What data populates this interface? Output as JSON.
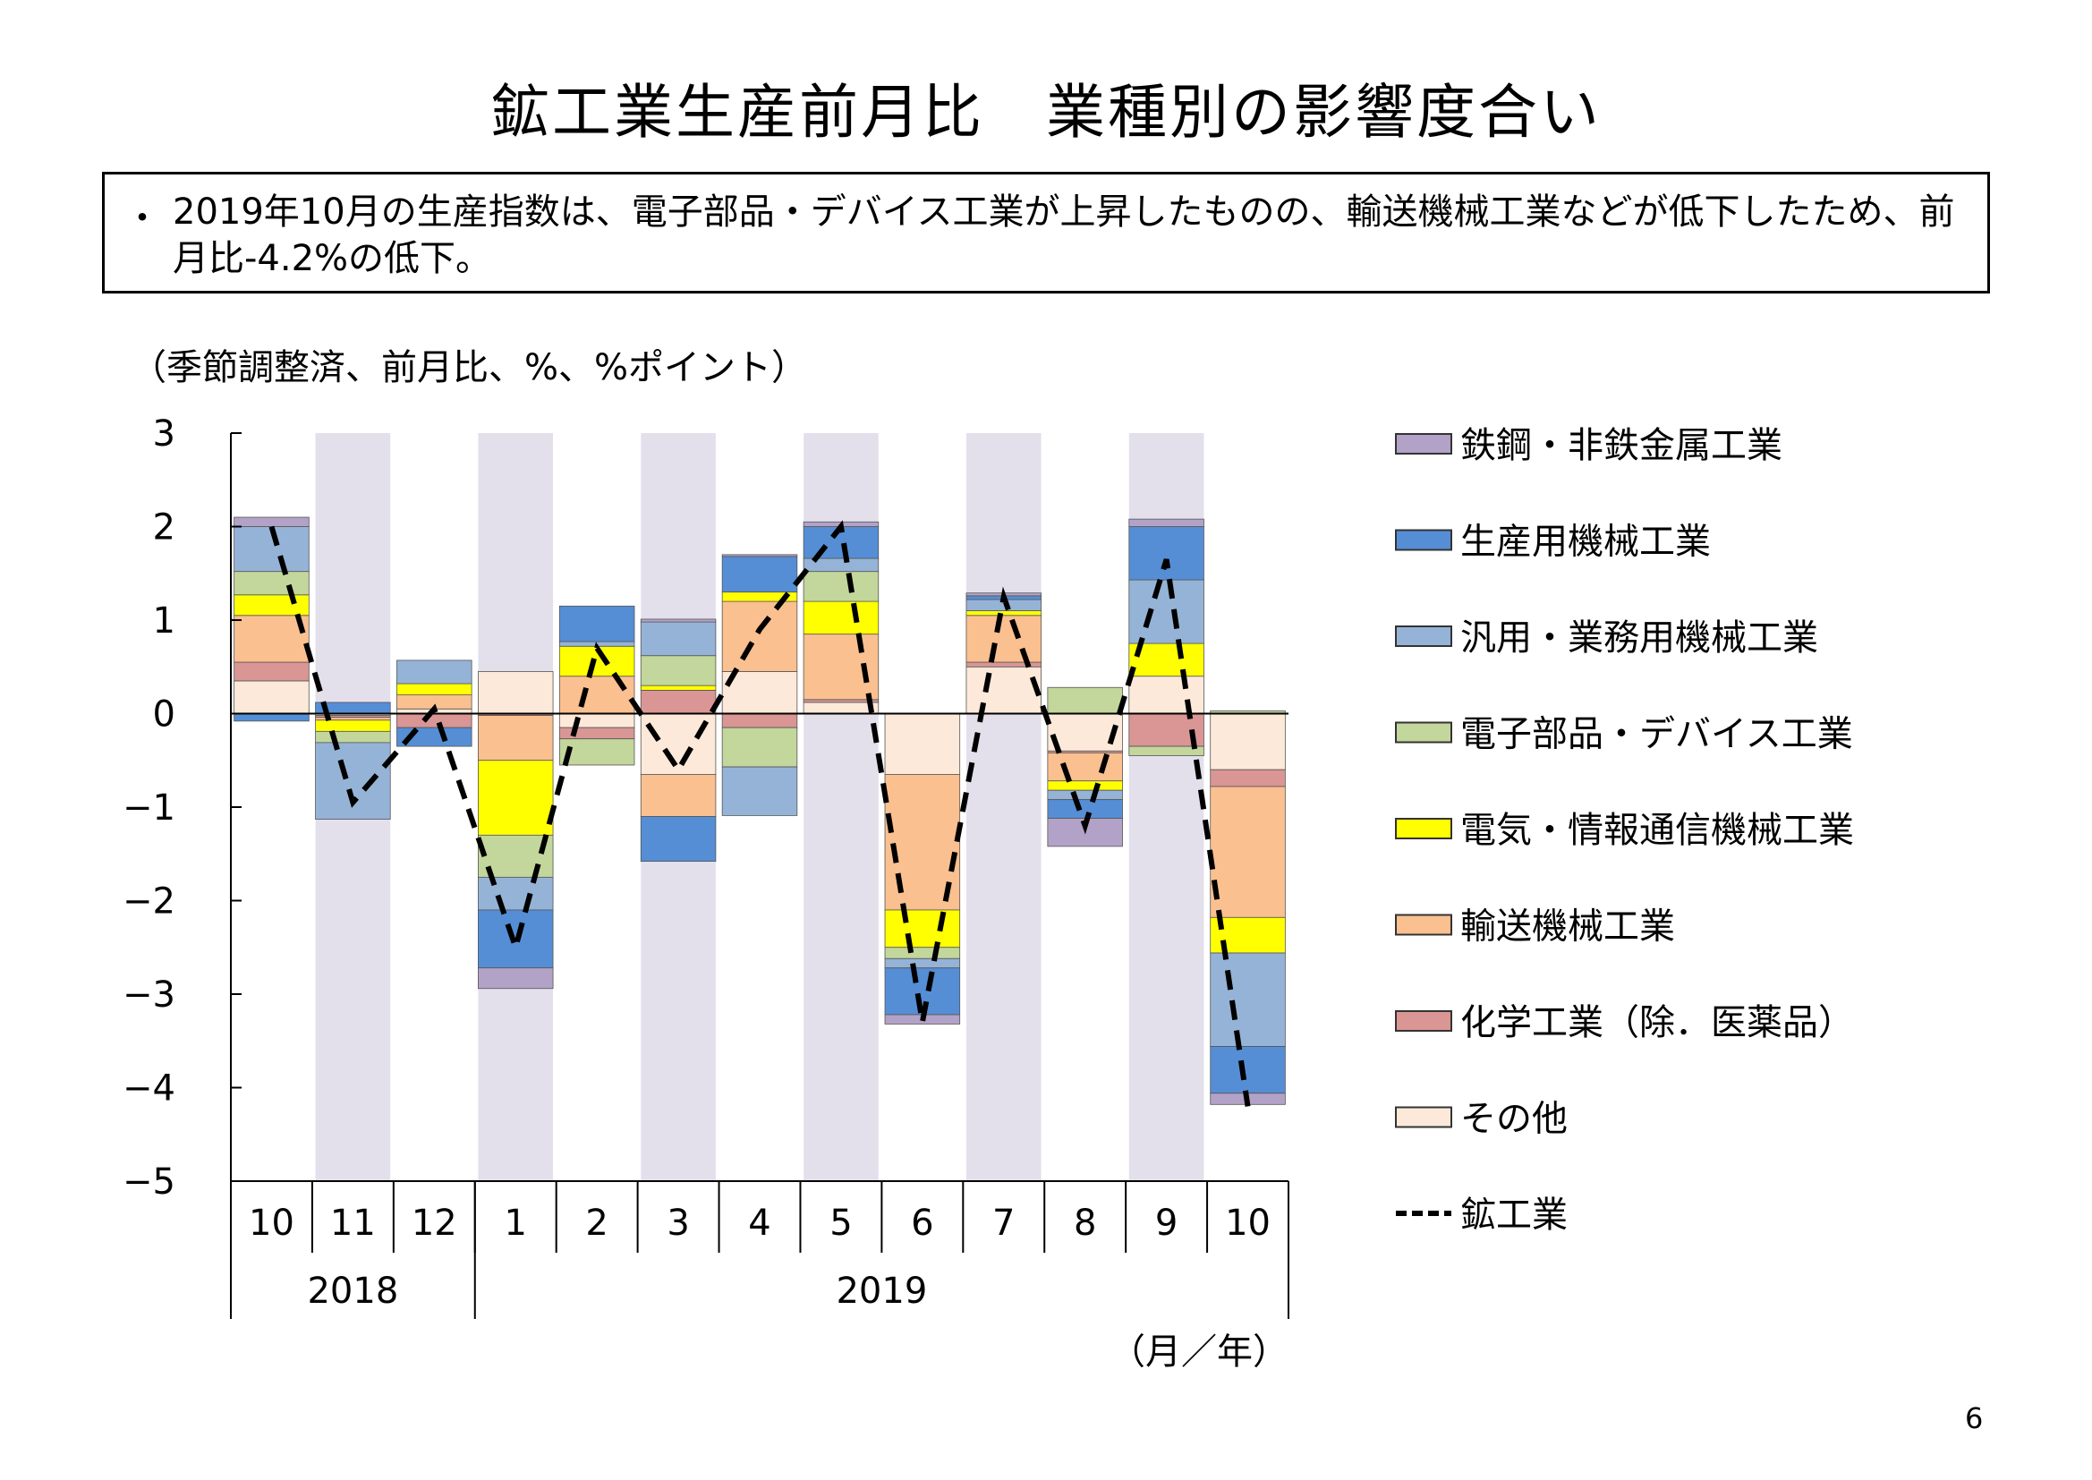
{
  "page": {
    "title": "鉱工業生産前月比　業種別の影響度合い",
    "summary_bullet": "・",
    "summary": "2019年10月の生産指数は、電子部品・デバイス工業が上昇したものの、輸送機械工業などが低下したため、前月比-4.2%の低下。",
    "unit_note": "（季節調整済、前月比、%、%ポイント）",
    "xaxis_unit": "（月／年）",
    "page_number": "6"
  },
  "chart_data": {
    "type": "bar",
    "stacked": true,
    "categories": [
      "10",
      "11",
      "12",
      "1",
      "2",
      "3",
      "4",
      "5",
      "6",
      "7",
      "8",
      "9",
      "10"
    ],
    "year_groups": [
      {
        "label": "2018",
        "start": 0,
        "end": 2
      },
      {
        "label": "2019",
        "start": 3,
        "end": 12
      }
    ],
    "shaded_categories": [
      1,
      3,
      5,
      7,
      9,
      11
    ],
    "ylim": [
      -5,
      3
    ],
    "yticks": [
      3,
      2,
      1,
      0,
      -1,
      -2,
      -3,
      -4,
      -5
    ],
    "grid": false,
    "legend_position": "right",
    "series": [
      {
        "name": "その他",
        "color": "#fde9d9",
        "values": [
          0.35,
          -0.02,
          0.05,
          0.45,
          -0.15,
          -0.65,
          0.45,
          0.12,
          -0.65,
          0.5,
          -0.4,
          0.4,
          -0.6
        ]
      },
      {
        "name": "化学工業（除．医薬品）",
        "color": "#d99694",
        "values": [
          0.2,
          -0.02,
          -0.15,
          -0.02,
          -0.12,
          0.25,
          -0.15,
          0.03,
          0.0,
          0.05,
          -0.02,
          -0.35,
          -0.18
        ]
      },
      {
        "name": "輸送機械工業",
        "color": "#fac090",
        "values": [
          0.5,
          -0.03,
          0.15,
          -0.48,
          0.4,
          -0.45,
          0.75,
          0.7,
          -1.45,
          0.5,
          -0.3,
          0.0,
          -1.4
        ]
      },
      {
        "name": "電気・情報通信機械工業",
        "color": "#ffff00",
        "values": [
          0.22,
          -0.12,
          0.12,
          -0.8,
          0.32,
          0.05,
          0.1,
          0.35,
          -0.4,
          0.05,
          -0.1,
          0.35,
          -0.38
        ]
      },
      {
        "name": "電子部品・デバイス工業",
        "color": "#c3d69b",
        "values": [
          0.25,
          -0.12,
          0.0,
          -0.45,
          -0.28,
          0.32,
          -0.42,
          0.32,
          -0.12,
          0.0,
          0.28,
          -0.1,
          0.03
        ]
      },
      {
        "name": "汎用・業務用機械工業",
        "color": "#95b3d7",
        "values": [
          0.48,
          -0.82,
          0.25,
          -0.35,
          0.05,
          0.36,
          -0.52,
          0.14,
          -0.1,
          0.12,
          -0.1,
          0.68,
          -1.0
        ]
      },
      {
        "name": "生産用機械工業",
        "color": "#558ed5",
        "values": [
          -0.08,
          0.12,
          -0.2,
          -0.62,
          0.38,
          -0.48,
          0.38,
          0.34,
          -0.5,
          0.04,
          -0.2,
          0.57,
          -0.5
        ]
      },
      {
        "name": "鉄鋼・非鉄金属工業",
        "color": "#b3a2c7",
        "values": [
          0.1,
          0.0,
          0.0,
          -0.22,
          0.0,
          0.03,
          0.02,
          0.05,
          -0.1,
          0.03,
          -0.3,
          0.08,
          -0.12
        ]
      }
    ],
    "line_series": {
      "name": "鉱工業",
      "style": "dashed",
      "color": "#000000",
      "values": [
        2.0,
        -0.95,
        0.05,
        -2.5,
        0.7,
        -0.6,
        0.9,
        2.0,
        -3.3,
        1.25,
        -1.2,
        1.65,
        -4.2
      ]
    },
    "legend_order": [
      "鉄鋼・非鉄金属工業",
      "生産用機械工業",
      "汎用・業務用機械工業",
      "電子部品・デバイス工業",
      "電気・情報通信機械工業",
      "輸送機械工業",
      "化学工業（除．医薬品）",
      "その他",
      "鉱工業"
    ]
  }
}
